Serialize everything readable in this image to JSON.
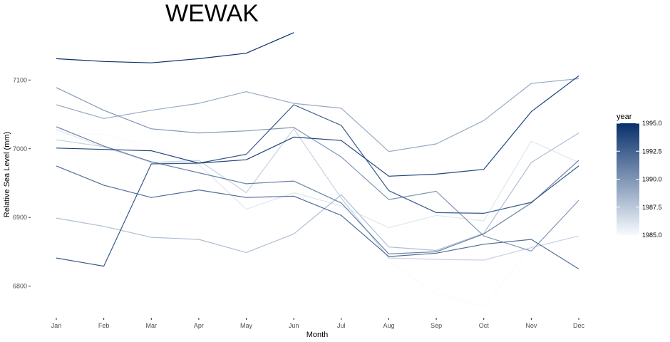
{
  "chart_data": {
    "type": "line",
    "title": "WEWAK",
    "xlabel": "Month",
    "ylabel": "Relative Sea Level (mm)",
    "categories": [
      "Jan",
      "Feb",
      "Mar",
      "Apr",
      "May",
      "Jun",
      "Jul",
      "Aug",
      "Sep",
      "Oct",
      "Nov",
      "Dec"
    ],
    "ylim": [
      6755,
      7175
    ],
    "yticks": [
      6800,
      6900,
      7000,
      7100
    ],
    "grid": false,
    "legend": {
      "title": "year",
      "position": "right",
      "type": "colorbar",
      "range": [
        1985,
        1995
      ],
      "ticks": [
        "1985.0",
        "1987.5",
        "1990.0",
        "1992.5",
        "1995.0"
      ],
      "colors": [
        "#f7fbff",
        "#08306b"
      ]
    },
    "series": [
      {
        "year": 1985,
        "values": [
          7022,
          7021,
          7003,
          6980,
          6945,
          6930,
          6935,
          6836,
          6789,
          6770,
          6858,
          6932
        ]
      },
      {
        "year": 1986,
        "values": [
          7028,
          7002,
          6981,
          6977,
          6912,
          6936,
          6917,
          6885,
          6903,
          6895,
          7011,
          6980
        ]
      },
      {
        "year": 1987,
        "values": [
          7013,
          7003,
          6980,
          6983,
          6936,
          7029,
          6928,
          6841,
          6839,
          6838,
          6856,
          6873
        ]
      },
      {
        "year": 1988,
        "values": [
          6899,
          6887,
          6871,
          6868,
          6849,
          6876,
          6933,
          6857,
          6852,
          6877,
          6980,
          7023
        ]
      },
      {
        "year": 1989,
        "values": [
          7064,
          7044,
          7056,
          7066,
          7083,
          7066,
          7059,
          6996,
          7007,
          7041,
          7095,
          7102
        ]
      },
      {
        "year": 1990,
        "values": [
          7089,
          7056,
          7029,
          7023,
          7026,
          7031,
          6988,
          6926,
          6938,
          6873,
          6851,
          6925
        ]
      },
      {
        "year": 1991,
        "values": [
          7032,
          7004,
          6981,
          6965,
          6949,
          6953,
          6921,
          6847,
          6850,
          6876,
          6921,
          6983
        ]
      },
      {
        "year": 1992,
        "values": [
          6975,
          6947,
          6929,
          6940,
          6929,
          6931,
          6903,
          6843,
          6848,
          6861,
          6868,
          6825
        ]
      },
      {
        "year": 1993,
        "values": [
          6841,
          6829,
          6978,
          6979,
          6992,
          7064,
          7034,
          6939,
          6907,
          6906,
          6922,
          6975
        ]
      },
      {
        "year": 1994,
        "values": [
          7001,
          6999,
          6997,
          6979,
          6984,
          7017,
          7012,
          6960,
          6963,
          6970,
          7054,
          7106
        ]
      },
      {
        "year": 1995,
        "values": [
          7131,
          7127,
          7125,
          7131,
          7139,
          7169,
          null,
          null,
          null,
          null,
          null,
          null
        ]
      }
    ]
  }
}
